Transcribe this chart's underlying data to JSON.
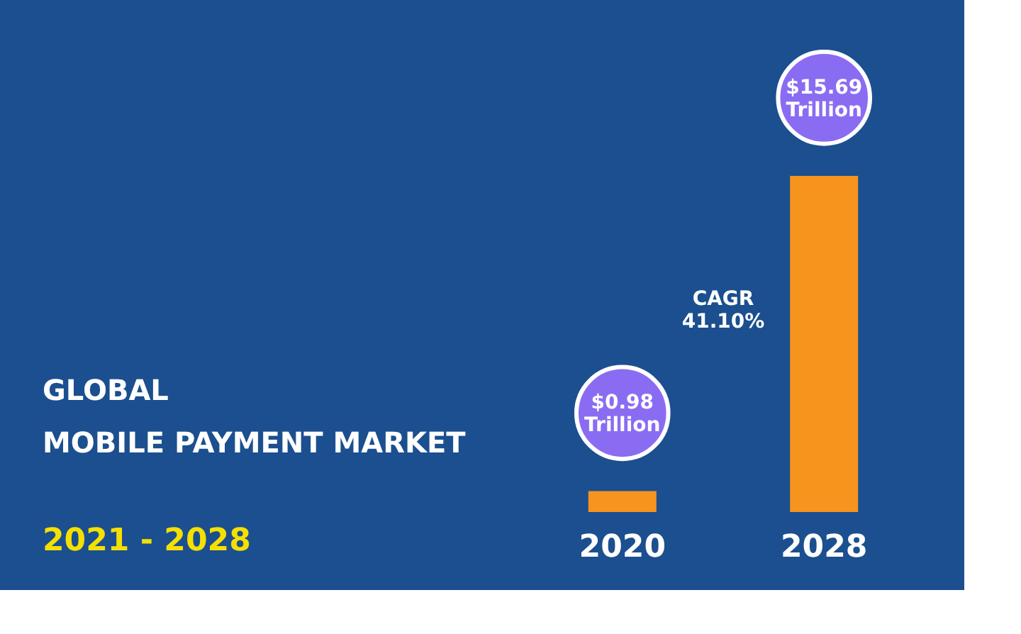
{
  "chart_data": {
    "type": "bar",
    "title": "GLOBAL MOBILE PAYMENT MARKET",
    "subtitle": "2021 - 2028",
    "categories": [
      "2020",
      "2028"
    ],
    "values": [
      0.98,
      15.69
    ],
    "value_labels": [
      "$0.98 Trillion",
      "$15.69 Trillion"
    ],
    "color": "#f7941d",
    "annotations": [
      "CAGR 41.10%"
    ],
    "tick_labels": "x",
    "grid": false
  }
}
